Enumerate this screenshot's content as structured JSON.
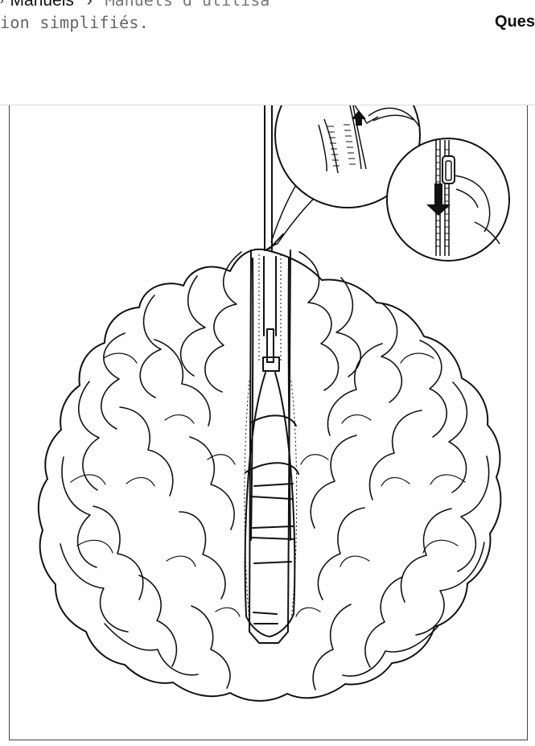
{
  "header": {
    "breadcrumb": {
      "link_label": "Manuels",
      "separator": "›",
      "current_label": "Manuels d'utilisa"
    },
    "title_continuation": "ion simplifiés.",
    "questions_label": "Ques"
  },
  "icons": {
    "breadcrumb_chevron": "chevron-right-icon"
  },
  "illustration": {
    "subject": "lamp-shade-zipper-illustration"
  }
}
